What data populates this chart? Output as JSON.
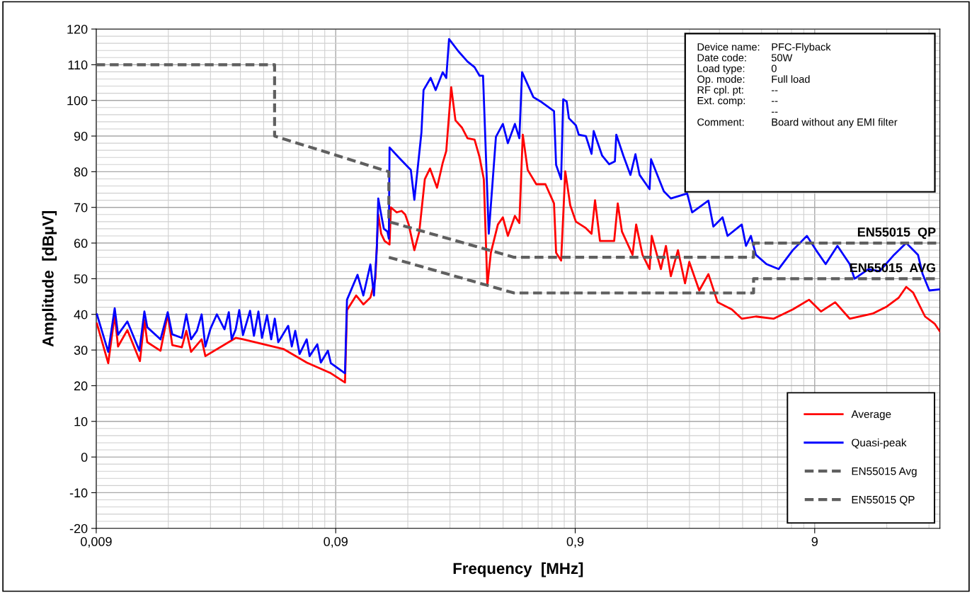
{
  "chart_data": {
    "type": "line",
    "xlabel": "Frequency  [MHz]",
    "ylabel": "Amplitude  [dBµV]",
    "log": "x",
    "xlim": [
      0.009,
      30
    ],
    "ylim": [
      -20,
      120
    ],
    "xticks": [
      {
        "value": 0.009,
        "label": "0,009"
      },
      {
        "value": 0.09,
        "label": "0,09"
      },
      {
        "value": 0.9,
        "label": "0,9"
      },
      {
        "value": 9,
        "label": "9"
      }
    ],
    "yticks": [
      -20,
      -10,
      0,
      10,
      20,
      30,
      40,
      50,
      60,
      70,
      80,
      90,
      100,
      110,
      120
    ],
    "grid": true,
    "legend": "bottom right",
    "series": [
      {
        "name": "Average",
        "color": "#ff0000",
        "line_style": "solid",
        "x": [
          0.00906,
          0.0101,
          0.01075,
          0.0111,
          0.01214,
          0.0137,
          0.0143,
          0.0147,
          0.0167,
          0.0179,
          0.0187,
          0.0205,
          0.0214,
          0.0224,
          0.0248,
          0.0257,
          0.0344,
          0.0369,
          0.0544,
          0.0681,
          0.0859,
          0.0984,
          0.1003,
          0.1096,
          0.1174,
          0.1256,
          0.1318,
          0.1355,
          0.1393,
          0.144,
          0.151,
          0.153,
          0.1617,
          0.1696,
          0.1755,
          0.1815,
          0.1917,
          0.201,
          0.212,
          0.2228,
          0.2384,
          0.2518,
          0.2605,
          0.2732,
          0.2846,
          0.3027,
          0.3195,
          0.342,
          0.359,
          0.3738,
          0.3867,
          0.4,
          0.428,
          0.449,
          0.471,
          0.504,
          0.526,
          0.5436,
          0.57,
          0.619,
          0.676,
          0.734,
          0.749,
          0.786,
          0.818,
          0.858,
          0.906,
          0.997,
          1.053,
          1.089,
          1.142,
          1.309,
          1.355,
          1.411,
          1.562,
          1.617,
          1.719,
          1.84,
          1.878,
          2.052,
          2.153,
          2.257,
          2.417,
          2.587,
          2.695,
          2.966,
          3.239,
          3.539,
          4.057,
          4.462,
          5.112,
          6.07,
          7.29,
          8.52,
          9.57,
          10.96,
          12.6,
          15.7,
          18.0,
          20.2,
          21.7,
          23.2,
          26.0,
          28.5,
          30
        ],
        "values": [
          37.4,
          26.3,
          39.8,
          31,
          35.6,
          26.9,
          38.4,
          32.2,
          29.8,
          40,
          31.4,
          30.8,
          35.4,
          29.5,
          33,
          28.3,
          33.4,
          33,
          30.3,
          26.5,
          23.5,
          20.9,
          41.2,
          45.3,
          42.8,
          44.7,
          50,
          68,
          62.6,
          60.6,
          59.6,
          70,
          68.6,
          69,
          68,
          65.2,
          58,
          63.2,
          77.9,
          80.9,
          75.5,
          82.5,
          85.8,
          103.7,
          94.4,
          92.4,
          89.4,
          89,
          84,
          77.9,
          48.1,
          57.3,
          65.2,
          67.2,
          62,
          67.6,
          65.6,
          90.4,
          80.5,
          76.5,
          76.5,
          71.1,
          57.3,
          55.1,
          80.1,
          70.6,
          66,
          64.2,
          62.6,
          72,
          60.6,
          60.6,
          71.1,
          63.2,
          56.7,
          65.2,
          56.7,
          52.7,
          62,
          52.7,
          59.2,
          50.7,
          58,
          48.7,
          54.7,
          46.7,
          51.3,
          43.4,
          41.4,
          38.8,
          39.4,
          38.8,
          41.4,
          44.1,
          40.8,
          43.4,
          38.8,
          40.2,
          42.2,
          44.7,
          47.7,
          46.1,
          39.4,
          37.4,
          35.2
        ]
      },
      {
        "name": "Quasi-peak",
        "color": "#0000ff",
        "line_style": "solid",
        "x": [
          0.00906,
          0.0101,
          0.01075,
          0.0111,
          0.01214,
          0.01363,
          0.0143,
          0.0147,
          0.0167,
          0.0179,
          0.0187,
          0.0205,
          0.0214,
          0.0224,
          0.0237,
          0.0248,
          0.0257,
          0.027,
          0.0287,
          0.0309,
          0.0322,
          0.0331,
          0.0344,
          0.0356,
          0.0369,
          0.0395,
          0.041,
          0.0428,
          0.0443,
          0.0465,
          0.0484,
          0.0501,
          0.0518,
          0.057,
          0.059,
          0.061,
          0.0636,
          0.0681,
          0.07,
          0.0754,
          0.078,
          0.0835,
          0.0859,
          0.0984,
          0.1003,
          0.111,
          0.1174,
          0.1256,
          0.13,
          0.1336,
          0.1355,
          0.1393,
          0.143,
          0.148,
          0.15,
          0.151,
          0.165,
          0.1815,
          0.1853,
          0.1917,
          0.2052,
          0.2094,
          0.2242,
          0.2353,
          0.2518,
          0.2605,
          0.2676,
          0.2925,
          0.3195,
          0.342,
          0.359,
          0.371,
          0.392,
          0.42,
          0.449,
          0.471,
          0.504,
          0.526,
          0.54,
          0.602,
          0.645,
          0.734,
          0.749,
          0.786,
          0.802,
          0.829,
          0.847,
          0.906,
          0.931,
          0.997,
          1.053,
          1.075,
          1.166,
          1.248,
          1.318,
          1.336,
          1.43,
          1.531,
          1.606,
          1.672,
          1.84,
          1.866,
          2.11,
          2.257,
          2.641,
          2.769,
          3.239,
          3.398,
          3.712,
          3.893,
          4.462,
          4.648,
          4.874,
          5.112,
          5.66,
          6.36,
          7.29,
          8.35,
          9.12,
          10.0,
          11.2,
          12.6,
          13.2,
          15.1,
          16.8,
          19.3,
          21.7,
          24.3,
          25.4,
          27.1,
          30
        ],
        "values": [
          40,
          29.5,
          41.7,
          34.3,
          38,
          29.8,
          40.8,
          36.4,
          33,
          40.6,
          34.4,
          33.4,
          40,
          33,
          35.4,
          40,
          31,
          36,
          40,
          35.8,
          40.6,
          33,
          35.8,
          41.2,
          34.2,
          41,
          34,
          40.8,
          33.4,
          39.8,
          33,
          38.8,
          32.2,
          36.8,
          31,
          35.4,
          28.9,
          33,
          28.3,
          31.6,
          26.5,
          29.8,
          26.3,
          23.5,
          44.1,
          51.1,
          45.3,
          54,
          45.3,
          58.6,
          72.5,
          68,
          64,
          63.2,
          61.2,
          86.8,
          84,
          81.1,
          80.5,
          72.1,
          91,
          102.9,
          106.3,
          102.9,
          107.9,
          106.3,
          117.2,
          113.8,
          110.9,
          109.3,
          106.9,
          106.9,
          62.6,
          89.8,
          93.4,
          88,
          93.4,
          89.4,
          107.9,
          100.9,
          99.7,
          97,
          81.9,
          77.9,
          100.3,
          99.7,
          95,
          93,
          90.4,
          90,
          85,
          91.4,
          84.5,
          82.1,
          82.9,
          90.4,
          84.5,
          79.1,
          84.9,
          79.1,
          75.1,
          83.5,
          74.5,
          72.5,
          73.9,
          68.6,
          71.9,
          64.6,
          67.2,
          62,
          65.2,
          59.2,
          62,
          56.7,
          54.1,
          52.7,
          58,
          62,
          58,
          54.1,
          59.2,
          54.1,
          50,
          52.7,
          52.1,
          56.7,
          60,
          56.7,
          51.3,
          46.7,
          47
        ]
      },
      {
        "name": "EN55015 Avg",
        "color": "#5f5f5f",
        "line_style": "dashed",
        "x": [
          0.15,
          0.5,
          5,
          5,
          30
        ],
        "values": [
          56,
          46,
          46,
          50,
          50
        ]
      },
      {
        "name": "EN55015 QP",
        "color": "#5f5f5f",
        "line_style": "dashed",
        "x": [
          0.009,
          0.05,
          0.05,
          0.15,
          0.15,
          0.5,
          5,
          5,
          30
        ],
        "values": [
          110,
          110,
          90,
          80,
          66,
          56,
          56,
          60,
          60
        ]
      }
    ],
    "annotations": [
      "Device name:",
      "Date code:",
      "Load type:",
      "Op. mode:",
      "RF cpl. pt:",
      "Ext. comp:",
      "Comment:",
      "PFC-Flyback",
      "50W",
      "0",
      "Full load",
      "--",
      "--",
      "--",
      "Board without any EMI filter",
      {
        "text": "EN55015  QP",
        "x": 30,
        "y": 60
      },
      {
        "text": "EN55015  AVG",
        "x": 30,
        "y": 50
      }
    ]
  }
}
